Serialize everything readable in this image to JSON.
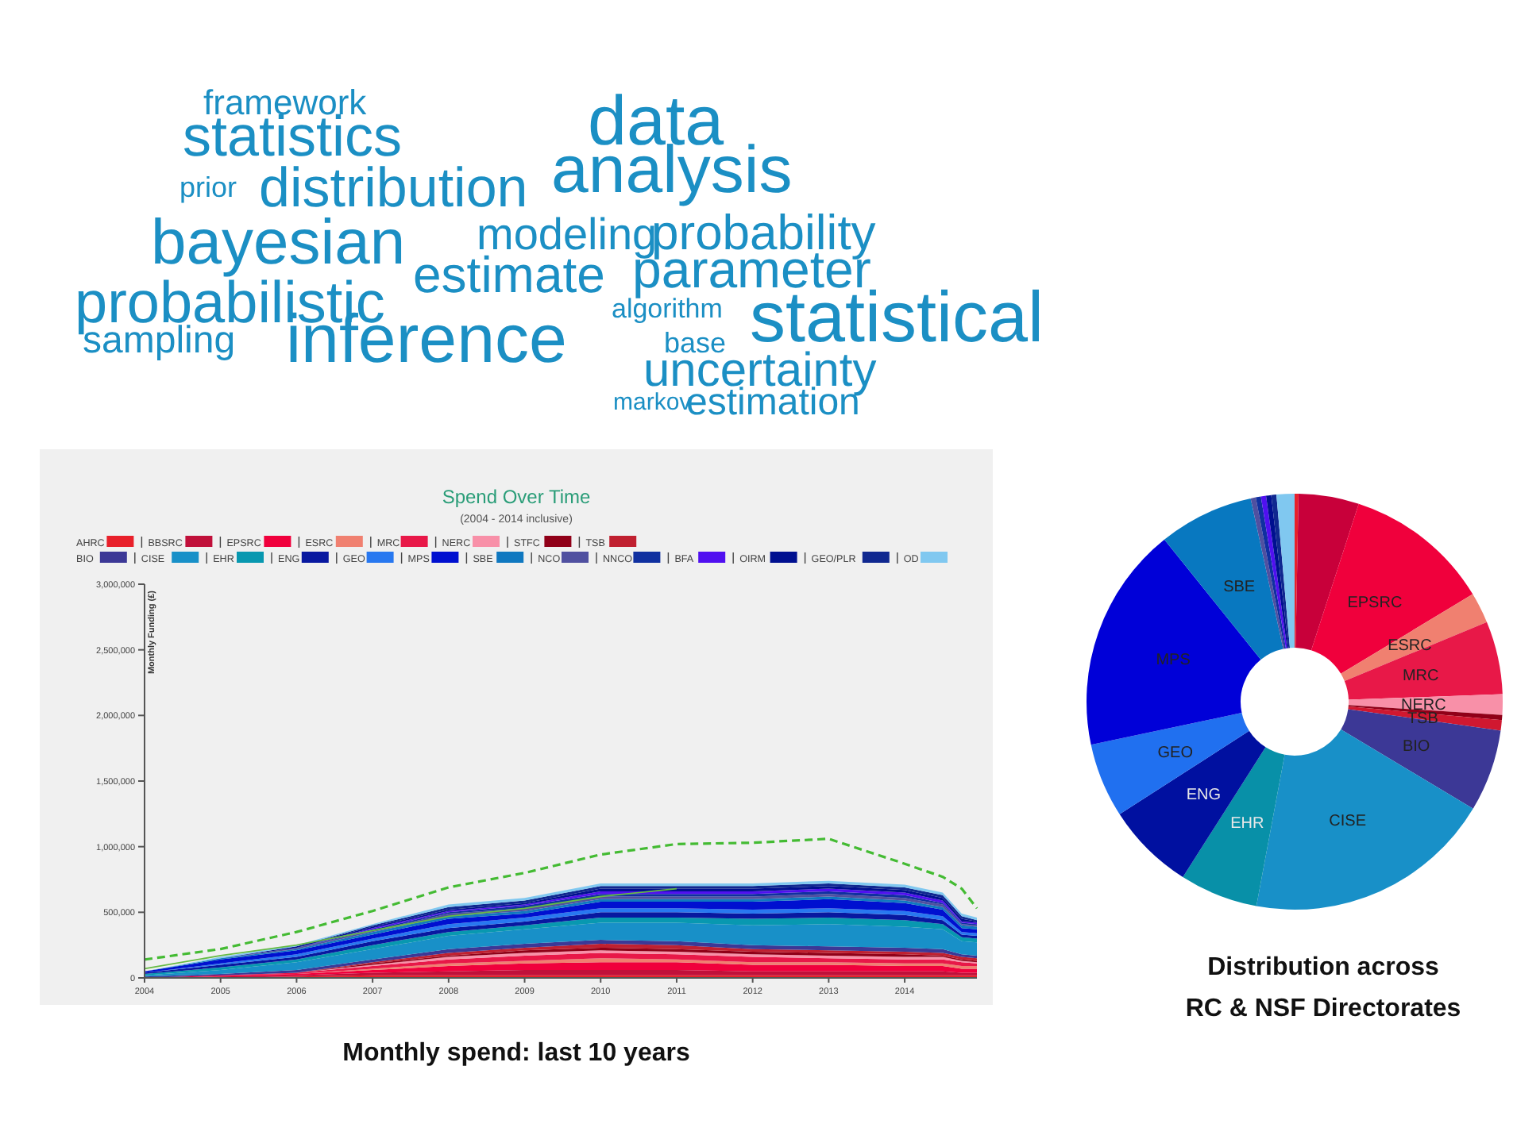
{
  "chart_data": [
    {
      "type": "other",
      "color": "#1b8fc4",
      "annotations": [
        "framework",
        "statistics",
        "data",
        "prior",
        "distribution",
        "analysis",
        "bayesian",
        "modeling",
        "probability",
        "estimate",
        "parameter",
        "probabilistic",
        "algorithm",
        "statistical",
        "sampling",
        "inference",
        "base",
        "uncertainty",
        "markov",
        "estimation"
      ]
    },
    {
      "type": "area",
      "stacked": true,
      "title": "Spend Over Time",
      "subtitle": "(2004 - 2014 inclusive)",
      "ylabel": "Monthly Funding (£)",
      "annotations": [
        "Monthly spend: last 10 years"
      ],
      "legend": "top left",
      "x": [
        2004,
        2005,
        2006,
        2007,
        2008,
        2009,
        2010,
        2011,
        2012,
        2013,
        2014,
        2014.5,
        2014.75,
        2014.95
      ],
      "xlim": [
        2004,
        2014.95
      ],
      "xticks": [
        2004,
        2005,
        2006,
        2007,
        2008,
        2009,
        2010,
        2011,
        2012,
        2013,
        2014
      ],
      "ylim": [
        0,
        3000000
      ],
      "yticks": [
        {
          "value": 0,
          "label": "0"
        },
        {
          "value": 500000,
          "label": "500,000"
        },
        {
          "value": 1000000,
          "label": "1,000,000"
        },
        {
          "value": 1500000,
          "label": "1,500,000"
        },
        {
          "value": 2000000,
          "label": "2,000,000"
        },
        {
          "value": 2500000,
          "label": "2,500,000"
        },
        {
          "value": 3000000,
          "label": "3,000,000"
        }
      ],
      "series": [
        {
          "name": "AHRC",
          "color": "#e8202a",
          "values": [
            0,
            0,
            10000,
            20000,
            20000,
            20000,
            20000,
            20000,
            20000,
            20000,
            20000,
            20000,
            20000,
            20000
          ]
        },
        {
          "name": "BBSRC",
          "color": "#c0103a",
          "values": [
            0,
            10000,
            10000,
            20000,
            30000,
            40000,
            40000,
            40000,
            30000,
            30000,
            30000,
            30000,
            20000,
            20000
          ]
        },
        {
          "name": "EPSRC",
          "color": "#f0003c",
          "values": [
            0,
            10000,
            10000,
            20000,
            40000,
            50000,
            60000,
            60000,
            50000,
            50000,
            40000,
            40000,
            30000,
            30000
          ]
        },
        {
          "name": "ESRC",
          "color": "#f08070",
          "values": [
            0,
            0,
            0,
            10000,
            20000,
            20000,
            30000,
            20000,
            20000,
            20000,
            20000,
            20000,
            20000,
            20000
          ]
        },
        {
          "name": "MRC",
          "color": "#e81848",
          "values": [
            0,
            0,
            10000,
            20000,
            30000,
            40000,
            40000,
            40000,
            40000,
            30000,
            30000,
            30000,
            30000,
            20000
          ]
        },
        {
          "name": "NERC",
          "color": "#f890a8",
          "values": [
            0,
            0,
            0,
            10000,
            20000,
            20000,
            20000,
            20000,
            20000,
            20000,
            20000,
            20000,
            10000,
            10000
          ]
        },
        {
          "name": "STFC",
          "color": "#900018",
          "values": [
            0,
            0,
            0,
            10000,
            10000,
            20000,
            20000,
            20000,
            20000,
            20000,
            20000,
            10000,
            10000,
            10000
          ]
        },
        {
          "name": "TSB",
          "color": "#c02030",
          "values": [
            0,
            0,
            0,
            10000,
            20000,
            20000,
            30000,
            30000,
            20000,
            20000,
            20000,
            20000,
            20000,
            20000
          ]
        },
        {
          "name": "BIO",
          "color": "#3c3896",
          "values": [
            10000,
            10000,
            20000,
            20000,
            30000,
            30000,
            30000,
            30000,
            30000,
            30000,
            30000,
            30000,
            20000,
            20000
          ]
        },
        {
          "name": "CISE",
          "color": "#1890c8",
          "values": [
            10000,
            30000,
            60000,
            80000,
            100000,
            110000,
            130000,
            140000,
            150000,
            170000,
            160000,
            150000,
            100000,
            100000
          ]
        },
        {
          "name": "EHR",
          "color": "#0898b0",
          "values": [
            10000,
            20000,
            20000,
            30000,
            30000,
            30000,
            40000,
            40000,
            50000,
            50000,
            50000,
            40000,
            30000,
            30000
          ]
        },
        {
          "name": "ENG",
          "color": "#0818a0",
          "values": [
            10000,
            20000,
            20000,
            30000,
            30000,
            30000,
            40000,
            40000,
            40000,
            40000,
            40000,
            30000,
            20000,
            20000
          ]
        },
        {
          "name": "GEO",
          "color": "#2878f0",
          "values": [
            0,
            10000,
            20000,
            20000,
            30000,
            30000,
            30000,
            30000,
            30000,
            30000,
            30000,
            30000,
            20000,
            20000
          ]
        },
        {
          "name": "MPS",
          "color": "#0010d0",
          "values": [
            10000,
            30000,
            30000,
            30000,
            40000,
            30000,
            50000,
            50000,
            60000,
            70000,
            60000,
            50000,
            30000,
            30000
          ]
        },
        {
          "name": "SBE",
          "color": "#1078c0",
          "values": [
            0,
            10000,
            10000,
            20000,
            20000,
            20000,
            20000,
            20000,
            20000,
            20000,
            20000,
            20000,
            20000,
            20000
          ]
        },
        {
          "name": "NCO",
          "color": "#5050a0",
          "values": [
            0,
            0,
            10000,
            10000,
            20000,
            20000,
            20000,
            20000,
            20000,
            20000,
            20000,
            20000,
            10000,
            10000
          ]
        },
        {
          "name": "NNCO",
          "color": "#1030a0",
          "values": [
            0,
            0,
            0,
            10000,
            10000,
            20000,
            20000,
            20000,
            20000,
            20000,
            20000,
            10000,
            10000,
            10000
          ]
        },
        {
          "name": "BFA",
          "color": "#5010f0",
          "values": [
            0,
            0,
            0,
            10000,
            10000,
            10000,
            20000,
            20000,
            20000,
            20000,
            20000,
            20000,
            10000,
            10000
          ]
        },
        {
          "name": "OIRM",
          "color": "#001090",
          "values": [
            0,
            0,
            10000,
            10000,
            10000,
            10000,
            20000,
            20000,
            20000,
            20000,
            20000,
            20000,
            20000,
            10000
          ]
        },
        {
          "name": "GEO/PLR",
          "color": "#102890",
          "values": [
            0,
            0,
            0,
            10000,
            20000,
            20000,
            20000,
            20000,
            20000,
            20000,
            20000,
            20000,
            20000,
            10000
          ]
        },
        {
          "name": "OD",
          "color": "#80c8f0",
          "values": [
            0,
            10000,
            10000,
            10000,
            20000,
            20000,
            20000,
            20000,
            20000,
            20000,
            20000,
            20000,
            20000,
            20000
          ]
        },
        {
          "type": "line",
          "color": "#66bb44",
          "x": [
            2004,
            2005,
            2006,
            2007,
            2008,
            2009,
            2010,
            2011
          ],
          "values": [
            70000,
            170000,
            250000,
            360000,
            470000,
            530000,
            620000,
            680000
          ]
        },
        {
          "type": "line",
          "color": "#44bb33",
          "line_style": "dashed",
          "values": [
            140000,
            220000,
            350000,
            510000,
            690000,
            800000,
            940000,
            1020000,
            1030000,
            1060000,
            870000,
            770000,
            680000,
            530000
          ]
        }
      ]
    },
    {
      "type": "donut",
      "title": "Distribution across\nRC & NSF Directorates",
      "categories": [
        null,
        null,
        "EPSRC",
        "ESRC",
        "MRC",
        "NERC",
        null,
        "TSB",
        "BIO",
        "CISE",
        "EHR",
        "ENG",
        "GEO",
        "MPS",
        "SBE",
        null,
        null,
        null,
        null,
        null,
        null
      ],
      "values": [
        0.3,
        4.7,
        11.4,
        2.4,
        5.7,
        1.6,
        0.4,
        0.8,
        6.4,
        19.4,
        6.1,
        6.9,
        5.8,
        17.6,
        7.4,
        0.4,
        0.4,
        0.4,
        0.4,
        0.4,
        1.4
      ],
      "colors": [
        "#e8202a",
        "#c8003a",
        "#f0003c",
        "#f08070",
        "#e81848",
        "#f890a8",
        "#900018",
        "#d01830",
        "#3c3896",
        "#1890c8",
        "#0890a8",
        "#0010a0",
        "#2070f0",
        "#0000d8",
        "#0878c0",
        "#5050a0",
        "#1030a0",
        "#5010f0",
        "#001090",
        "#102890",
        "#80c8f0"
      ]
    }
  ]
}
